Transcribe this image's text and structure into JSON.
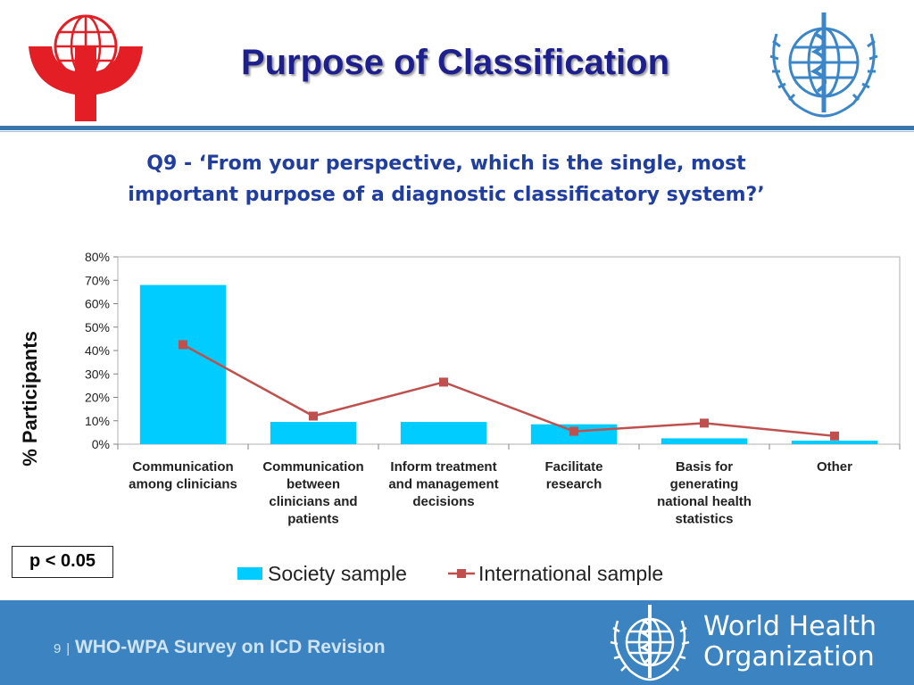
{
  "header": {
    "title": "Purpose of Classification",
    "left_logo": "wpa-globe-logo",
    "right_logo": "who-emblem-logo"
  },
  "question": {
    "line1": "Q9 - ‘From your perspective, which is the single, most",
    "line2": "important purpose of a diagnostic classificatory system?’"
  },
  "chart_data": {
    "type": "bar",
    "categories": [
      [
        "Communication",
        "among clinicians"
      ],
      [
        "Communication",
        "between",
        "clinicians and",
        "patients"
      ],
      [
        "Inform treatment",
        "and management",
        "decisions"
      ],
      [
        "Facilitate",
        "research"
      ],
      [
        "Basis for",
        "generating",
        "national health",
        "statistics"
      ],
      [
        "Other"
      ]
    ],
    "series": [
      {
        "name": "Society sample",
        "kind": "bar",
        "color": "#00ccff",
        "values": [
          68,
          9.5,
          9.5,
          8.5,
          2.5,
          1.5
        ]
      },
      {
        "name": "International sample",
        "kind": "line",
        "color": "#c0504d",
        "values": [
          42.5,
          12,
          26.5,
          5.5,
          9,
          3.5
        ]
      }
    ],
    "ylabel": "% Participants",
    "yticks": [
      "0%",
      "10%",
      "20%",
      "30%",
      "40%",
      "50%",
      "60%",
      "70%",
      "80%"
    ],
    "ylim": [
      0,
      80
    ],
    "grid": false,
    "legend": "bottom"
  },
  "note": "p < 0.05",
  "footer": {
    "page": "9",
    "separator": "|",
    "text": "WHO-WPA Survey on ICD Revision",
    "org_line1": "World Health",
    "org_line2": "Organization",
    "color": "#3b84c1"
  }
}
